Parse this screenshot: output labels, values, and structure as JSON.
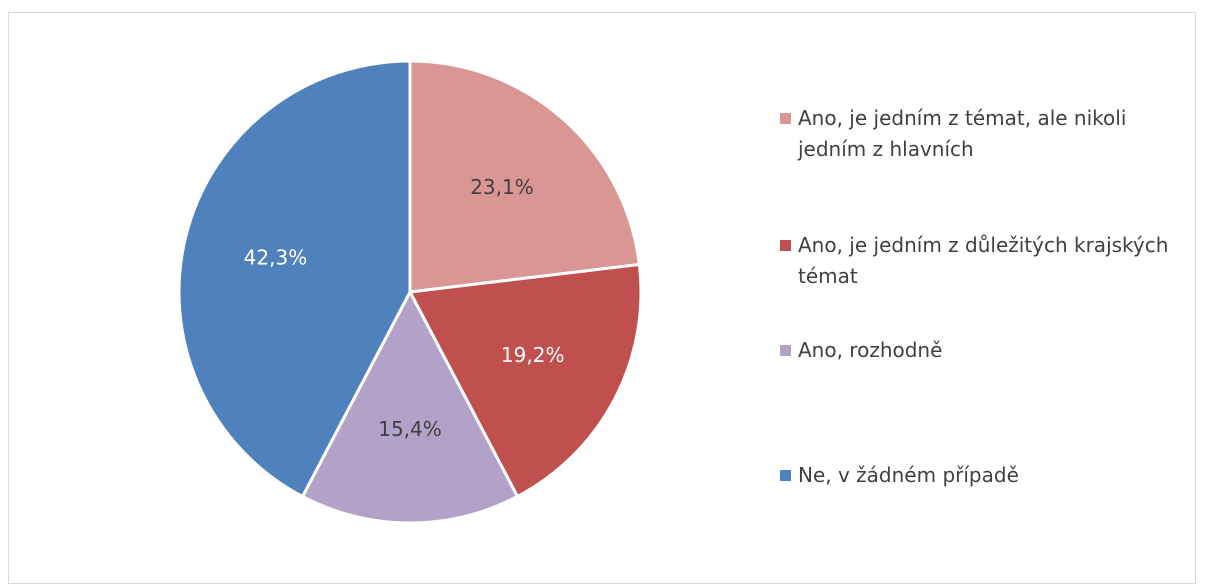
{
  "chart_data": {
    "type": "pie",
    "categories": [
      "Ano, je jedním z témat, ale nikoli jedním z hlavních",
      "Ano, je jedním z důležitých krajských témat",
      "Ano, rozhodně",
      "Ne, v žádném případě"
    ],
    "values": [
      23.1,
      19.2,
      15.4,
      42.3
    ],
    "value_labels": [
      "23,1%",
      "19,2%",
      "15,4%",
      "42,3%"
    ],
    "colors": [
      "#d99694",
      "#c0504d",
      "#b2a2c7",
      "#4f81bd"
    ],
    "legend": "right"
  }
}
